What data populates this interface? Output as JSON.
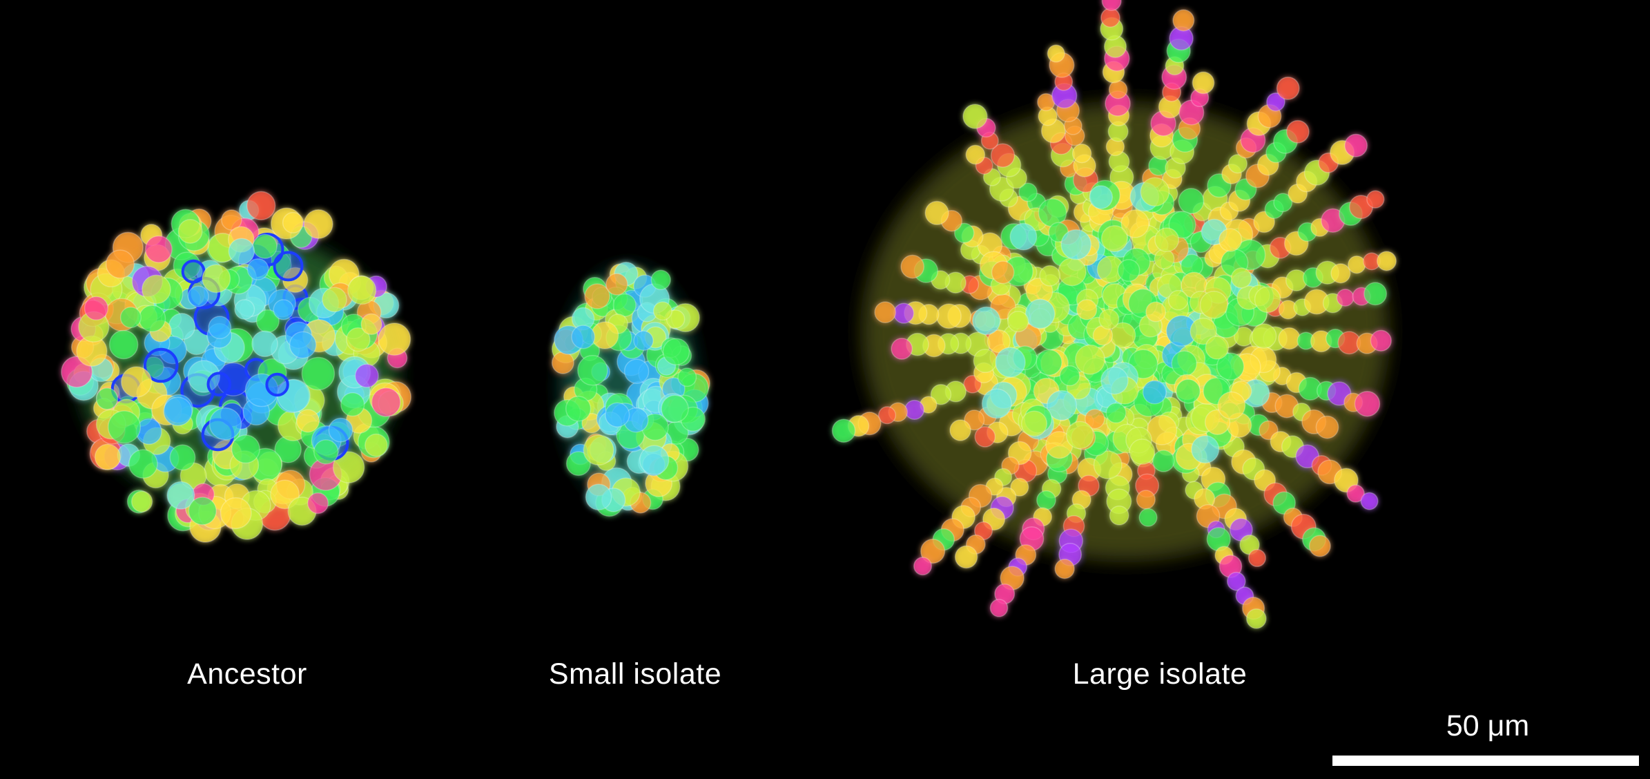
{
  "figure": {
    "labels": {
      "ancestor": "Ancestor",
      "small_isolate": "Small isolate",
      "large_isolate": "Large isolate"
    },
    "scale_bar": {
      "label": "50 μm"
    },
    "colors": {
      "background": "#000000",
      "text": "#ffffff",
      "depth_palette": [
        "#1a3cff",
        "#38b8ff",
        "#6fe8e0",
        "#3ef05a",
        "#c8f040",
        "#ffe040",
        "#ffa030",
        "#ff5a40",
        "#ff40a0",
        "#b040ff"
      ]
    }
  }
}
